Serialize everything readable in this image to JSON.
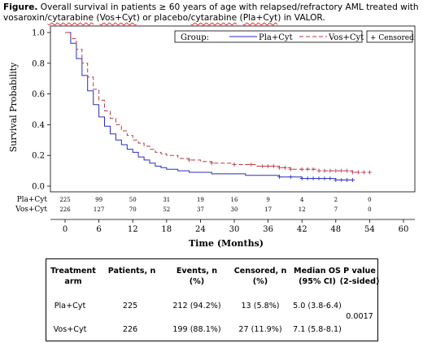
{
  "caption": {
    "label": "Figure.",
    "line1_rest": " Overall survival in patients ≥ 60 years of age with relapsed/refractory AML treated with",
    "w_vosaroxin": "vosaroxin",
    "w_sep1": "/",
    "w_cytarabine1": "cytarabine",
    "w_paren1": " (",
    "w_voscyt": "Vos+Cyt",
    "w_mid": ") or placebo/",
    "w_cytarabine2": "cytarabine",
    "w_paren2": " (",
    "w_placyt": "Pla+Cyt",
    "w_end": ") in VALOR."
  },
  "colors": {
    "pla": "#2b2bbf",
    "vos": "#b23a48",
    "axis": "#000000"
  },
  "chart_data": {
    "type": "line",
    "xlabel": "Time (Months)",
    "ylabel": "Survival Probability",
    "xlim": [
      0,
      60
    ],
    "ylim": [
      0,
      1.0
    ],
    "xticks": [
      0,
      6,
      12,
      18,
      24,
      30,
      36,
      42,
      48,
      54,
      60
    ],
    "yticks": [
      0.0,
      0.2,
      0.4,
      0.6,
      0.8,
      1.0
    ],
    "ytick_labels": [
      "0.0",
      "0.2",
      "0.4",
      "0.6",
      "0.8",
      "1.0"
    ],
    "legend": {
      "title": "Group:",
      "censored_label": "+ Censored",
      "placement": "top-right"
    },
    "series": [
      {
        "name": "Pla+Cyt",
        "color": "#2b2bbf",
        "x": [
          0,
          1,
          2,
          3,
          4,
          5,
          6,
          7,
          8,
          9,
          10,
          11,
          12,
          13,
          14,
          15,
          16,
          17,
          18,
          20,
          22,
          24,
          26,
          28,
          30,
          32,
          34,
          36,
          38,
          40,
          42,
          45,
          48,
          50,
          51
        ],
        "y": [
          1.0,
          0.93,
          0.83,
          0.72,
          0.62,
          0.53,
          0.45,
          0.39,
          0.34,
          0.3,
          0.27,
          0.24,
          0.22,
          0.19,
          0.17,
          0.15,
          0.13,
          0.12,
          0.11,
          0.1,
          0.09,
          0.09,
          0.08,
          0.08,
          0.08,
          0.07,
          0.07,
          0.07,
          0.06,
          0.06,
          0.05,
          0.05,
          0.04,
          0.04,
          0.04
        ],
        "censor_x": [
          38,
          40,
          42,
          43,
          44,
          45,
          46,
          47,
          48,
          49,
          50,
          51
        ]
      },
      {
        "name": "Vos+Cyt",
        "color": "#b23a48",
        "x": [
          0,
          1,
          2,
          3,
          4,
          5,
          6,
          7,
          8,
          9,
          10,
          11,
          12,
          13,
          14,
          15,
          16,
          17,
          18,
          20,
          22,
          24,
          26,
          28,
          30,
          32,
          34,
          36,
          38,
          40,
          42,
          45,
          48,
          51,
          54
        ],
        "y": [
          1.0,
          0.96,
          0.89,
          0.8,
          0.71,
          0.63,
          0.56,
          0.49,
          0.44,
          0.4,
          0.36,
          0.33,
          0.3,
          0.28,
          0.26,
          0.24,
          0.22,
          0.21,
          0.2,
          0.18,
          0.17,
          0.16,
          0.15,
          0.15,
          0.14,
          0.14,
          0.13,
          0.13,
          0.12,
          0.11,
          0.11,
          0.1,
          0.1,
          0.09,
          0.09
        ],
        "censor_x": [
          22,
          26,
          30,
          33,
          35,
          36,
          37,
          38,
          39,
          40,
          42,
          43,
          44,
          45,
          46,
          47,
          48,
          49,
          50,
          51,
          52,
          53,
          54
        ]
      }
    ],
    "at_risk": {
      "times": [
        0,
        6,
        12,
        18,
        24,
        30,
        36,
        42,
        48,
        54
      ],
      "rows": [
        {
          "label": "Pla+Cyt",
          "values": [
            "225",
            "99",
            "50",
            "31",
            "19",
            "16",
            "9",
            "4",
            "2",
            "0"
          ]
        },
        {
          "label": "Vos+Cyt",
          "values": [
            "226",
            "127",
            "70",
            "52",
            "37",
            "30",
            "17",
            "12",
            "7",
            "0"
          ]
        }
      ]
    }
  },
  "table": {
    "headers": [
      [
        "Treatment",
        "arm"
      ],
      [
        "Patients, n"
      ],
      [
        "Events, n",
        "(%)"
      ],
      [
        "Censored, n",
        "(%)"
      ],
      [
        "Median OS",
        "(95% CI)"
      ],
      [
        "P value",
        "(2-sided)"
      ]
    ],
    "rows": [
      [
        "Pla+Cyt",
        "225",
        "212 (94.2%)",
        "13 (5.8%)",
        "5.0 (3.8-6.4)"
      ],
      [
        "Vos+Cyt",
        "226",
        "199 (88.1%)",
        "27 (11.9%)",
        "7.1 (5.8-8.1)"
      ]
    ],
    "p_value": "0.0017"
  }
}
